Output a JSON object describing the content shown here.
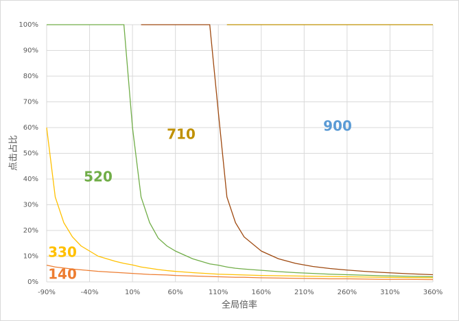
{
  "chart_data": {
    "type": "line",
    "x_label": "全局倍率",
    "y_label": "点击占比",
    "x": [
      -90,
      -80,
      -70,
      -60,
      -50,
      -40,
      -30,
      -20,
      -10,
      0,
      10,
      20,
      30,
      40,
      50,
      60,
      80,
      100,
      110,
      120,
      130,
      140,
      160,
      180,
      200,
      220,
      240,
      260,
      280,
      300,
      330,
      360
    ],
    "series": [
      {
        "name": "900",
        "color": "#bf9000",
        "label_color": "#5b9bd5",
        "values": [
          null,
          null,
          null,
          null,
          null,
          null,
          null,
          null,
          null,
          null,
          null,
          null,
          null,
          null,
          null,
          null,
          null,
          null,
          null,
          100,
          100,
          100,
          100,
          100,
          100,
          100,
          100,
          100,
          100,
          100,
          100,
          100
        ]
      },
      {
        "name": "710",
        "color": "#9e480e",
        "label_color": "#bf9000",
        "values": [
          null,
          null,
          null,
          null,
          null,
          null,
          null,
          null,
          null,
          null,
          null,
          100,
          100,
          100,
          100,
          100,
          100,
          100,
          66,
          33,
          23,
          17.5,
          12,
          9,
          7.2,
          6,
          5.2,
          4.6,
          4.1,
          3.7,
          3.2,
          2.8
        ]
      },
      {
        "name": "520",
        "color": "#70ad47",
        "label_color": "#70ad47",
        "values": [
          100,
          100,
          100,
          100,
          100,
          100,
          100,
          100,
          100,
          100,
          60,
          33,
          23,
          17,
          14,
          12,
          9,
          7,
          6.5,
          5.8,
          5.3,
          5,
          4.5,
          4,
          3.6,
          3.3,
          3,
          2.8,
          2.6,
          2.4,
          2.2,
          2
        ]
      },
      {
        "name": "330",
        "color": "#ffc000",
        "label_color": "#ffc000",
        "values": [
          60,
          33,
          23,
          17.5,
          14,
          12,
          10,
          9,
          8,
          7.2,
          6.6,
          5.8,
          5.3,
          4.8,
          4.4,
          4.1,
          3.6,
          3.2,
          3,
          2.9,
          2.8,
          2.7,
          2.5,
          2.4,
          2.3,
          2.2,
          2.1,
          2,
          1.9,
          1.8,
          1.7,
          1.6
        ]
      },
      {
        "name": "140",
        "color": "#ed7d31",
        "label_color": "#ed7d31",
        "values": [
          6.5,
          5.8,
          5.4,
          5,
          4.7,
          4.4,
          4.1,
          3.9,
          3.7,
          3.5,
          3.3,
          3.1,
          2.9,
          2.8,
          2.7,
          2.5,
          2.3,
          2.1,
          2,
          1.9,
          1.8,
          1.8,
          1.6,
          1.5,
          1.4,
          1.3,
          1.2,
          1.2,
          1.1,
          1,
          1,
          0.9
        ]
      }
    ],
    "xlim": [
      -90,
      360
    ],
    "xticks": [
      {
        "value": -90,
        "label": "-90%"
      },
      {
        "value": -40,
        "label": "-40%"
      },
      {
        "value": 10,
        "label": "10%"
      },
      {
        "value": 60,
        "label": "60%"
      },
      {
        "value": 110,
        "label": "110%"
      },
      {
        "value": 160,
        "label": "160%"
      },
      {
        "value": 210,
        "label": "210%"
      },
      {
        "value": 260,
        "label": "260%"
      },
      {
        "value": 310,
        "label": "310%"
      },
      {
        "value": 360,
        "label": "360%"
      }
    ],
    "ylim": [
      0,
      100
    ],
    "yticks": [
      {
        "value": 0,
        "label": "0%"
      },
      {
        "value": 10,
        "label": "10%"
      },
      {
        "value": 20,
        "label": "20%"
      },
      {
        "value": 30,
        "label": "30%"
      },
      {
        "value": 40,
        "label": "40%"
      },
      {
        "value": 50,
        "label": "50%"
      },
      {
        "value": 60,
        "label": "60%"
      },
      {
        "value": 70,
        "label": "70%"
      },
      {
        "value": 80,
        "label": "80%"
      },
      {
        "value": 90,
        "label": "90%"
      },
      {
        "value": 100,
        "label": "100%"
      }
    ],
    "grid": true
  }
}
